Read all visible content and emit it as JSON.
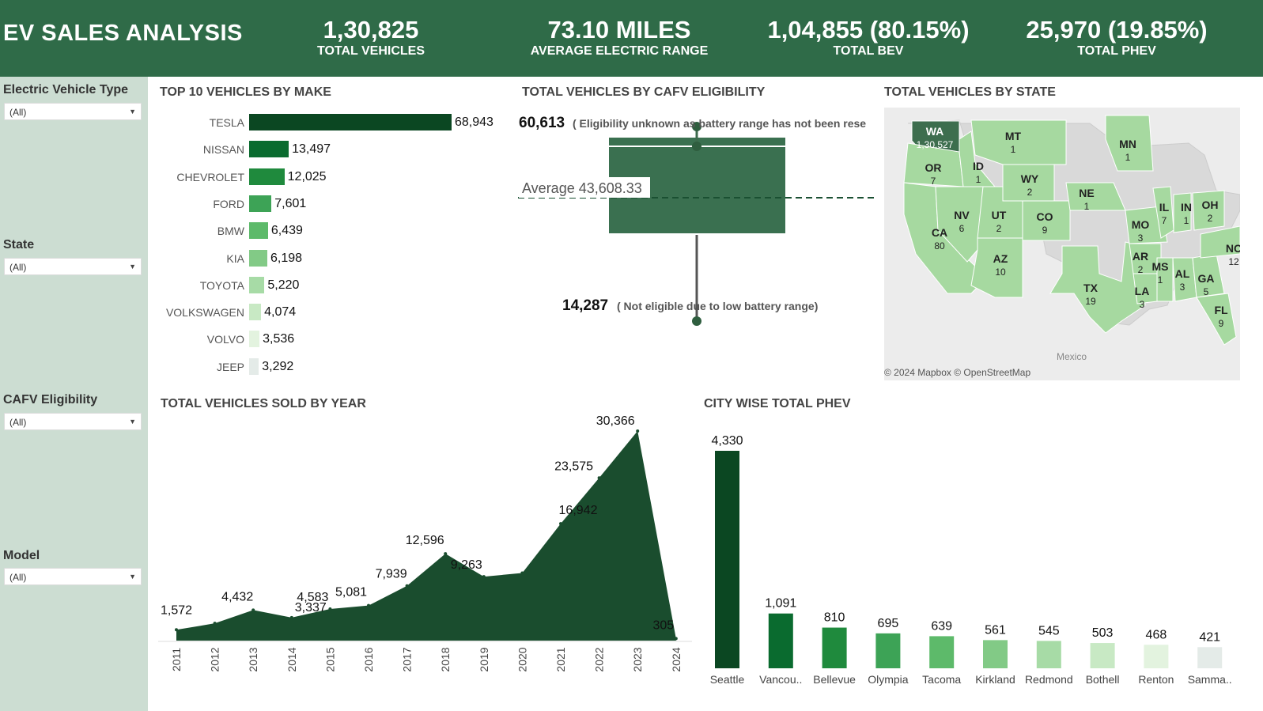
{
  "header": {
    "title": "EV SALES ANALYSIS",
    "kpis": [
      {
        "value": "1,30,825",
        "label": "TOTAL VEHICLES"
      },
      {
        "value": "73.10 MILES",
        "label": "AVERAGE ELECTRIC RANGE"
      },
      {
        "value": "1,04,855 (80.15%)",
        "label": "TOTAL BEV"
      },
      {
        "value": "25,970 (19.85%)",
        "label": "TOTAL PHEV"
      }
    ]
  },
  "filters": [
    {
      "label": "Electric Vehicle Type",
      "value": "(All)"
    },
    {
      "label": "State",
      "value": "(All)"
    },
    {
      "label": "CAFV Eligibility",
      "value": "(All)"
    },
    {
      "label": "Model",
      "value": "(All)"
    }
  ],
  "sections": {
    "make": "TOP 10 VEHICLES BY MAKE",
    "cafv": "TOTAL VEHICLES BY CAFV ELIGIBILITY",
    "state": "TOTAL VEHICLES BY STATE",
    "year": "TOTAL VEHICLES SOLD BY YEAR",
    "city": "CITY WISE TOTAL PHEV"
  },
  "colors": {
    "header": "#2f6b48",
    "sidebar": "#ccddd2",
    "area": "#1a4d2e",
    "box": "#3a7050",
    "make_scale": [
      "#0b4722",
      "#0a6b2f",
      "#1f8a3d",
      "#3da356",
      "#5dba6a",
      "#82ca86",
      "#a7dba6",
      "#c8e9c4",
      "#e3f3df",
      "#e4ebe8"
    ],
    "city_scale": [
      "#0b4722",
      "#0a6b2f",
      "#1f8a3d",
      "#3da356",
      "#5dba6a",
      "#82ca86",
      "#a7dba6",
      "#c8e9c4",
      "#e3f3df",
      "#e4ebe8"
    ]
  },
  "cafv": {
    "top_value": "60,613",
    "top_label": "( Eligibility unknown as battery range has not been rese",
    "avg_label": "Average 43,608.33",
    "bottom_value": "14,287",
    "bottom_label": "( Not eligible due to low battery range)"
  },
  "map": {
    "credit": "© 2024 Mapbox © OpenStreetMap",
    "country_label": "Mexico",
    "states": [
      {
        "abbr": "WA",
        "count": "1,30,527"
      },
      {
        "abbr": "OR",
        "count": "7"
      },
      {
        "abbr": "ID",
        "count": "1"
      },
      {
        "abbr": "MT",
        "count": "1"
      },
      {
        "abbr": "WY",
        "count": "2"
      },
      {
        "abbr": "CA",
        "count": "80"
      },
      {
        "abbr": "NV",
        "count": "6"
      },
      {
        "abbr": "UT",
        "count": "2"
      },
      {
        "abbr": "CO",
        "count": "9"
      },
      {
        "abbr": "AZ",
        "count": "10"
      },
      {
        "abbr": "NE",
        "count": "1"
      },
      {
        "abbr": "TX",
        "count": "19"
      },
      {
        "abbr": "MN",
        "count": "1"
      },
      {
        "abbr": "MO",
        "count": "3"
      },
      {
        "abbr": "AR",
        "count": "2"
      },
      {
        "abbr": "LA",
        "count": "3"
      },
      {
        "abbr": "IL",
        "count": "7"
      },
      {
        "abbr": "IN",
        "count": "1"
      },
      {
        "abbr": "OH",
        "count": "2"
      },
      {
        "abbr": "MS",
        "count": "1"
      },
      {
        "abbr": "AL",
        "count": "3"
      },
      {
        "abbr": "GA",
        "count": "5"
      },
      {
        "abbr": "FL",
        "count": "9"
      },
      {
        "abbr": "NC",
        "count": "12"
      }
    ]
  },
  "chart_data": [
    {
      "type": "bar",
      "title": "TOP 10 VEHICLES BY MAKE",
      "orientation": "horizontal",
      "categories": [
        "TESLA",
        "NISSAN",
        "CHEVROLET",
        "FORD",
        "BMW",
        "KIA",
        "TOYOTA",
        "VOLKSWAGEN",
        "VOLVO",
        "JEEP"
      ],
      "values": [
        68943,
        13497,
        12025,
        7601,
        6439,
        6198,
        5220,
        4074,
        3536,
        3292
      ],
      "labels": [
        "68,943",
        "13,497",
        "12,025",
        "7,601",
        "6,439",
        "6,198",
        "5,220",
        "4,074",
        "3,536",
        "3,292"
      ]
    },
    {
      "type": "area",
      "title": "TOTAL VEHICLES SOLD BY YEAR",
      "x": [
        "2011",
        "2012",
        "2013",
        "2014",
        "2015",
        "2016",
        "2017",
        "2018",
        "2019",
        "2020",
        "2021",
        "2022",
        "2023",
        "2024"
      ],
      "values": [
        1572,
        2500,
        4432,
        3337,
        4583,
        5081,
        7939,
        12596,
        9263,
        9800,
        16942,
        23575,
        30366,
        305
      ],
      "labels": [
        "1,572",
        "",
        "4,432",
        "3,337",
        "4,583",
        "5,081",
        "7,939",
        "12,596",
        "9,263",
        "",
        "16,942",
        "23,575",
        "30,366",
        "305"
      ],
      "ylim": [
        0,
        30366
      ]
    },
    {
      "type": "bar",
      "title": "CITY WISE TOTAL PHEV",
      "categories": [
        "Seattle",
        "Vancou..",
        "Bellevue",
        "Olympia",
        "Tacoma",
        "Kirkland",
        "Redmond",
        "Bothell",
        "Renton",
        "Samma.."
      ],
      "values": [
        4330,
        1091,
        810,
        695,
        639,
        561,
        545,
        503,
        468,
        421
      ],
      "labels": [
        "4,330",
        "1,091",
        "810",
        "695",
        "639",
        "561",
        "545",
        "503",
        "468",
        "421"
      ]
    }
  ]
}
